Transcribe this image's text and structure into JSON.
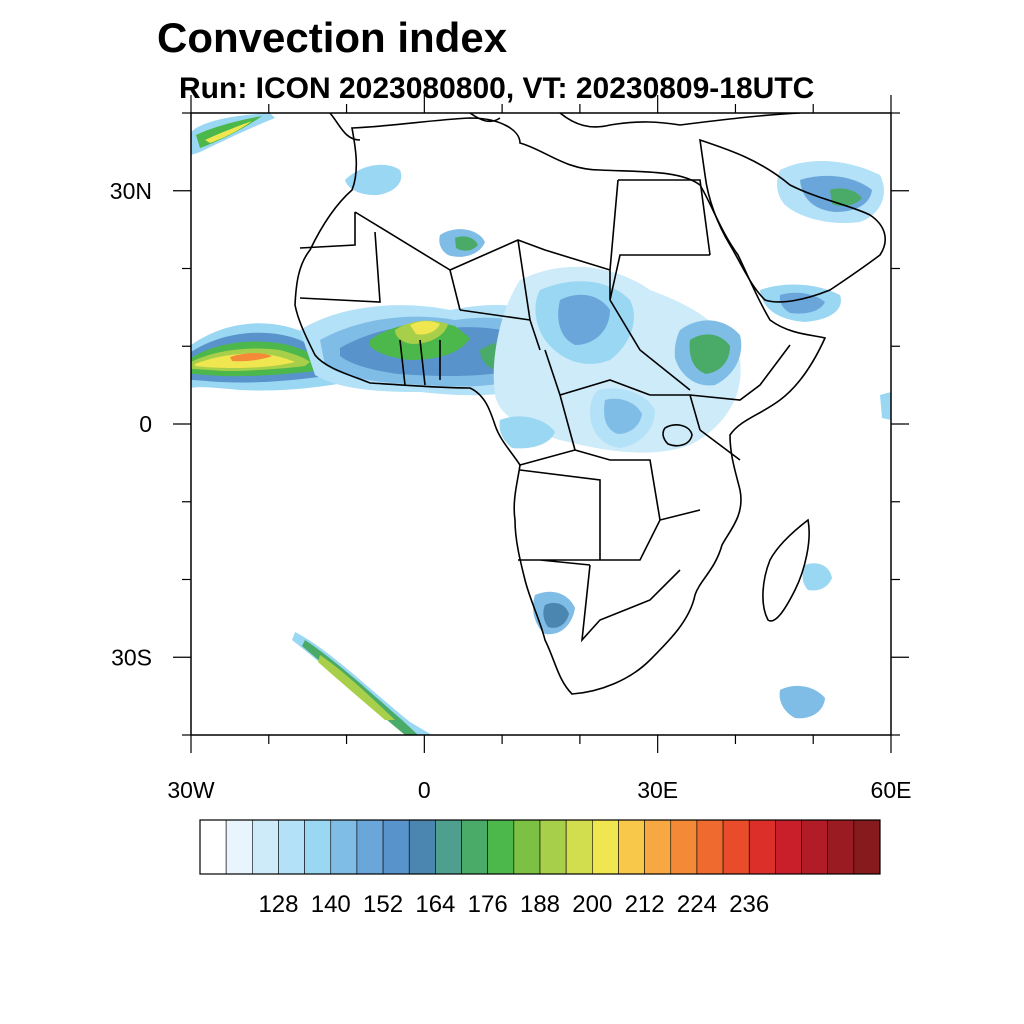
{
  "title": "Convection index",
  "subtitle": "Run: ICON 2023080800,  VT: 20230809-18UTC",
  "axes": {
    "x_ticks": [
      {
        "value": -30,
        "label": "30W"
      },
      {
        "value": 0,
        "label": "0"
      },
      {
        "value": 30,
        "label": "30E"
      },
      {
        "value": 60,
        "label": "60E"
      }
    ],
    "y_ticks": [
      {
        "value": 30,
        "label": "30N"
      },
      {
        "value": 0,
        "label": "0"
      },
      {
        "value": -30,
        "label": "30S"
      }
    ],
    "lon_range": [
      -30,
      60
    ],
    "lat_range": [
      -40,
      40
    ]
  },
  "colorbar": {
    "colors": [
      "#ffffff",
      "#e8f5fc",
      "#cdebf9",
      "#b3e1f7",
      "#9ad7f3",
      "#80bde6",
      "#6ba6da",
      "#5893cc",
      "#4a86b0",
      "#4e9f8e",
      "#4aaa68",
      "#4cb74b",
      "#7cc143",
      "#a8cf49",
      "#d3de4e",
      "#f0e64f",
      "#f8c84a",
      "#f7a842",
      "#f48a38",
      "#ee6a2e",
      "#e84c2a",
      "#dc2f2a",
      "#c81f2a",
      "#b11c27",
      "#9b1b22",
      "#861a1d"
    ],
    "labels": [
      "128",
      "140",
      "152",
      "164",
      "176",
      "188",
      "200",
      "212",
      "224",
      "236"
    ]
  },
  "map": {
    "projection": "cylindrical-equidistant",
    "field": "convection index, shaded",
    "basemap": "coastlines and country borders",
    "colors": {
      "frame": "#000000",
      "borders": "#000000"
    }
  }
}
